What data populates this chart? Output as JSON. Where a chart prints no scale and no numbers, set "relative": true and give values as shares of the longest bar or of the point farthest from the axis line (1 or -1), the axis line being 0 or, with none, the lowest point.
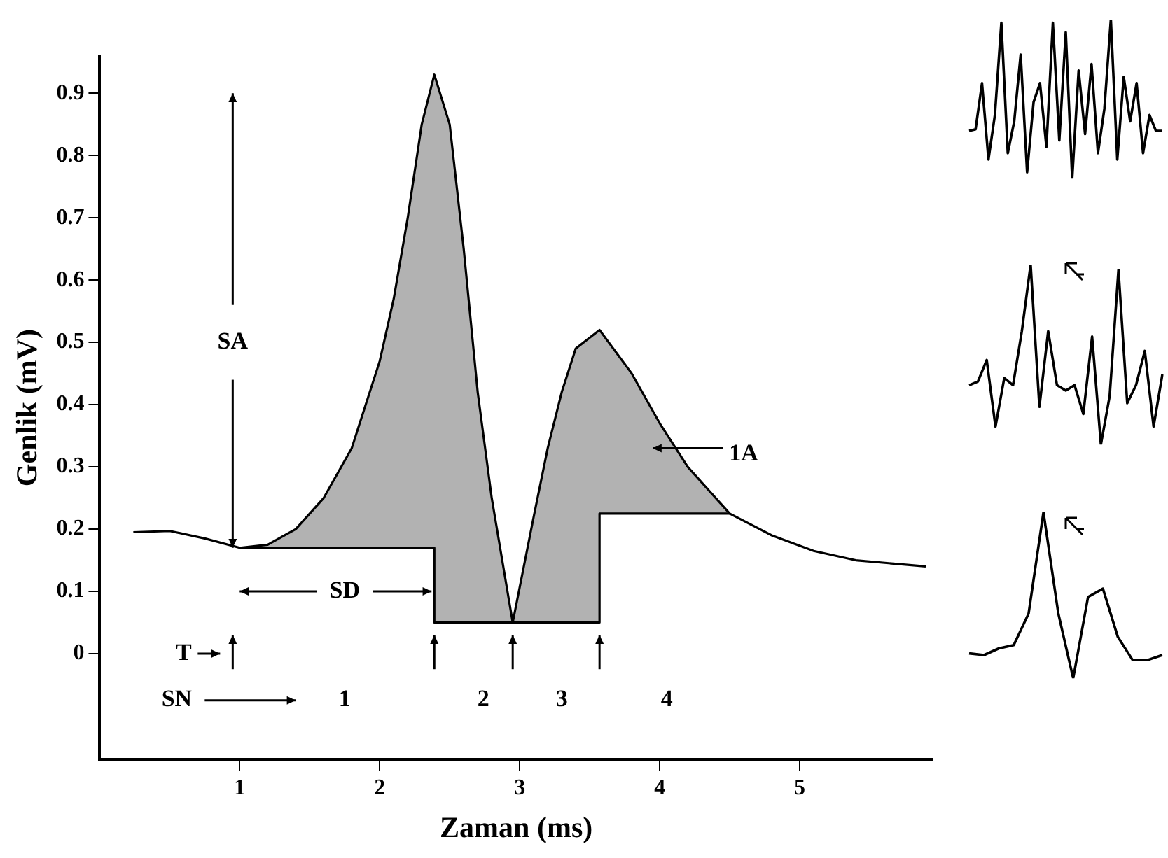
{
  "chart_data": [
    {
      "type": "line",
      "xlabel": "Zaman (ms)",
      "ylabel": "Genlik (mV)",
      "xlim": [
        0,
        5.95
      ],
      "xticks": [
        1,
        2,
        3,
        4,
        5
      ],
      "ylim": [
        -0.17,
        0.96
      ],
      "yticks": [
        0,
        0.1,
        0.2,
        0.3,
        0.4,
        0.5,
        0.6,
        0.7,
        0.8,
        0.9
      ],
      "series": [
        {
          "color": "#000000",
          "x": [
            0.24,
            0.5,
            0.75,
            1.0,
            1.2,
            1.4,
            1.6,
            1.8,
            2.0,
            2.1,
            2.2,
            2.3,
            2.39,
            2.39,
            2.5,
            2.6,
            2.7,
            2.8,
            2.95,
            3.1,
            3.2,
            3.3,
            3.4,
            3.57,
            3.57,
            3.8,
            4.0,
            4.2,
            4.5,
            4.8,
            5.1,
            5.4,
            5.9
          ],
          "values": [
            0.195,
            0.197,
            0.185,
            0.17,
            0.175,
            0.2,
            0.25,
            0.33,
            0.47,
            0.57,
            0.7,
            0.85,
            0.93,
            0.93,
            0.85,
            0.65,
            0.42,
            0.25,
            0.05,
            0.22,
            0.33,
            0.42,
            0.49,
            0.52,
            0.52,
            0.45,
            0.37,
            0.3,
            0.225,
            0.19,
            0.165,
            0.15,
            0.14
          ],
          "lower": [
            null,
            null,
            null,
            0.17,
            0.17,
            0.17,
            0.17,
            0.17,
            0.17,
            0.17,
            0.17,
            0.17,
            0.17,
            0.05,
            0.05,
            0.05,
            0.05,
            0.05,
            0.05,
            0.05,
            0.05,
            0.05,
            0.05,
            0.05,
            0.225,
            0.225,
            0.225,
            0.225,
            0.225,
            null,
            null,
            null,
            null
          ],
          "upper": [
            null,
            null,
            null,
            0.17,
            0.175,
            0.2,
            0.25,
            0.33,
            0.47,
            0.57,
            0.7,
            0.85,
            0.93,
            0.93,
            0.85,
            0.65,
            0.42,
            0.25,
            0.05,
            0.22,
            0.33,
            0.42,
            0.49,
            0.52,
            0.52,
            0.45,
            0.37,
            0.3,
            0.225,
            null,
            null,
            null,
            null
          ]
        },
        {
          "color": "#000000",
          "x": [
            1.0,
            2.39,
            2.39,
            2.95,
            3.57,
            3.57,
            4.5
          ],
          "values": [
            0.17,
            0.17,
            0.05,
            0.05,
            0.05,
            0.225,
            0.225
          ]
        }
      ],
      "annotations": [
        {
          "text": "SA",
          "x": 0.95,
          "y": 0.5
        },
        {
          "text": "SD",
          "x": 1.75,
          "y": 0.1
        },
        {
          "text": "T",
          "x": 0.6,
          "y": 0
        },
        {
          "text": "SN",
          "x": 0.55,
          "y": -0.075
        },
        {
          "text": "1",
          "x": 1.75,
          "y": -0.075
        },
        {
          "text": "2",
          "x": 2.74,
          "y": -0.075
        },
        {
          "text": "3",
          "x": 3.3,
          "y": -0.075
        },
        {
          "text": "4",
          "x": 4.05,
          "y": -0.075
        },
        {
          "text": "1A",
          "x": 4.6,
          "y": 0.32
        }
      ],
      "grid": false,
      "legend": false,
      "marker": "none",
      "line_style": "solid"
    },
    {
      "type": "line",
      "relative": true,
      "categories": [
        null,
        null,
        null,
        null,
        null,
        null,
        null,
        null,
        null,
        null,
        null,
        null,
        null,
        null,
        null,
        null,
        null,
        null,
        null,
        null,
        null,
        null,
        null,
        null,
        null,
        null,
        null,
        null,
        null,
        null,
        null
      ],
      "series": [
        {
          "color": "#000000",
          "values": [
            0.3,
            0.31,
            0.6,
            0.12,
            0.4,
            0.98,
            0.16,
            0.36,
            0.78,
            0.04,
            0.48,
            0.6,
            0.2,
            0.98,
            0.24,
            0.92,
            0,
            0.68,
            0.28,
            0.72,
            0.16,
            0.44,
            1,
            0.12,
            0.64,
            0.36,
            0.6,
            0.16,
            0.4,
            0.3,
            0.3
          ]
        }
      ],
      "grid": false,
      "legend": false,
      "marker": "none",
      "line_style": "solid"
    },
    {
      "type": "line",
      "relative": true,
      "categories": [
        null,
        null,
        null,
        null,
        null,
        null,
        null,
        null,
        null,
        null,
        null,
        null,
        null,
        null,
        null,
        null,
        null,
        null,
        null,
        null,
        null,
        null,
        null
      ],
      "series": [
        {
          "color": "#000000",
          "values": [
            0.33,
            0.35,
            0.47,
            0.1,
            0.37,
            0.33,
            0.63,
            1,
            0.21,
            0.63,
            0.33,
            0.3,
            0.33,
            0.17,
            0.6,
            0,
            0.27,
            0.97,
            0.23,
            0.33,
            0.52,
            0.1,
            0.39
          ]
        }
      ],
      "grid": false,
      "legend": false,
      "marker": "none",
      "line_style": "solid"
    },
    {
      "type": "line",
      "relative": true,
      "categories": [
        null,
        null,
        null,
        null,
        null,
        null,
        null,
        null,
        null,
        null,
        null,
        null,
        null,
        null
      ],
      "series": [
        {
          "color": "#000000",
          "values": [
            0.15,
            0.14,
            0.18,
            0.2,
            0.39,
            1,
            0.39,
            0,
            0.49,
            0.54,
            0.25,
            0.11,
            0.11,
            0.14
          ]
        }
      ],
      "grid": false,
      "legend": false,
      "marker": "none",
      "line_style": "solid"
    }
  ]
}
